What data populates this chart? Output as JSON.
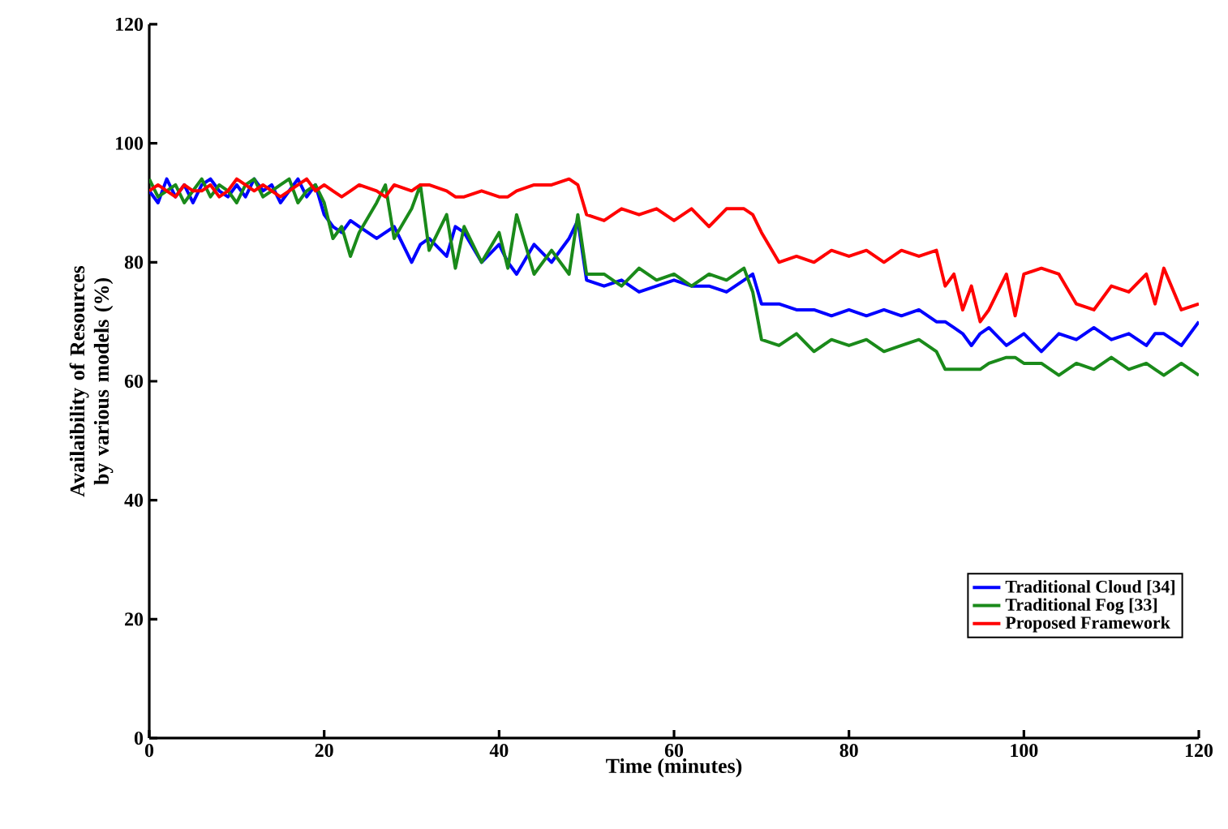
{
  "chart_data": {
    "type": "line",
    "xlabel": "Time (minutes)",
    "ylabel": "Availaibility of Resources by various models (%)",
    "xlim": [
      0,
      120
    ],
    "ylim": [
      0,
      120
    ],
    "xticks": [
      0,
      20,
      40,
      60,
      80,
      100,
      120
    ],
    "yticks": [
      0,
      20,
      40,
      60,
      80,
      100,
      120
    ],
    "grid": false,
    "legend": "bottom right",
    "x": [
      0,
      1,
      2,
      3,
      4,
      5,
      6,
      7,
      8,
      9,
      10,
      11,
      12,
      13,
      14,
      15,
      16,
      17,
      18,
      19,
      20,
      21,
      22,
      23,
      24,
      26,
      27,
      28,
      30,
      31,
      32,
      34,
      35,
      36,
      38,
      40,
      41,
      42,
      44,
      46,
      48,
      49,
      50,
      52,
      54,
      56,
      58,
      60,
      62,
      64,
      66,
      68,
      69,
      70,
      72,
      74,
      76,
      78,
      80,
      82,
      84,
      86,
      88,
      90,
      91,
      92,
      93,
      94,
      95,
      96,
      98,
      99,
      100,
      102,
      104,
      106,
      108,
      110,
      112,
      114,
      115,
      116,
      118,
      120
    ],
    "series": [
      {
        "name": "Traditional Cloud [34]",
        "color": "#0000ff",
        "values": [
          92,
          90,
          94,
          91,
          93,
          90,
          93,
          94,
          92,
          91,
          93,
          91,
          94,
          92,
          93,
          90,
          92,
          94,
          91,
          93,
          88,
          86,
          85,
          87,
          86,
          84,
          85,
          86,
          80,
          83,
          84,
          81,
          86,
          85,
          80,
          83,
          80,
          78,
          83,
          80,
          84,
          87,
          77,
          76,
          77,
          75,
          76,
          77,
          76,
          76,
          75,
          77,
          78,
          73,
          73,
          72,
          72,
          71,
          72,
          71,
          72,
          71,
          72,
          70,
          70,
          69,
          68,
          66,
          68,
          69,
          66,
          67,
          68,
          65,
          68,
          67,
          69,
          67,
          68,
          66,
          68,
          68,
          66,
          70
        ]
      },
      {
        "name": "Traditional Fog [33]",
        "color": "#1a8a1a",
        "values": [
          94,
          91,
          92,
          93,
          90,
          92,
          94,
          91,
          93,
          92,
          90,
          93,
          94,
          91,
          92,
          93,
          94,
          90,
          92,
          93,
          90,
          84,
          86,
          81,
          85,
          90,
          93,
          84,
          89,
          93,
          82,
          88,
          79,
          86,
          80,
          85,
          79,
          88,
          78,
          82,
          78,
          88,
          78,
          78,
          76,
          79,
          77,
          78,
          76,
          78,
          77,
          79,
          75,
          67,
          66,
          68,
          65,
          67,
          66,
          67,
          65,
          66,
          67,
          65,
          62,
          62,
          62,
          62,
          62,
          63,
          64,
          64,
          63,
          63,
          61,
          63,
          62,
          64,
          62,
          63,
          62,
          61,
          63,
          61
        ]
      },
      {
        "name": "Proposed Framework",
        "color": "#ff0000",
        "values": [
          92,
          93,
          92,
          91,
          93,
          92,
          92,
          93,
          91,
          92,
          94,
          93,
          92,
          93,
          92,
          91,
          92,
          93,
          94,
          92,
          93,
          92,
          91,
          92,
          93,
          92,
          91,
          93,
          92,
          93,
          93,
          92,
          91,
          91,
          92,
          91,
          91,
          92,
          93,
          93,
          94,
          93,
          88,
          87,
          89,
          88,
          89,
          87,
          89,
          86,
          89,
          89,
          88,
          85,
          80,
          81,
          80,
          82,
          81,
          82,
          80,
          82,
          81,
          82,
          76,
          78,
          72,
          76,
          70,
          72,
          78,
          71,
          78,
          79,
          78,
          73,
          72,
          76,
          75,
          78,
          73,
          79,
          72,
          73
        ]
      }
    ]
  }
}
